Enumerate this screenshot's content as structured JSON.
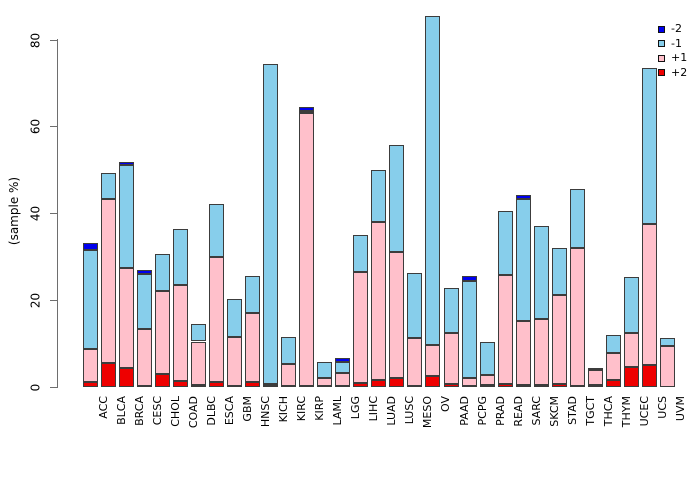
{
  "chart_data": {
    "type": "bar",
    "variant": "stacked-vertical",
    "title": "",
    "xlabel": "",
    "ylabel": "(sample %)",
    "yticks": [
      0,
      20,
      40,
      60,
      80
    ],
    "ylim": [
      0,
      87
    ],
    "grid": false,
    "legend_position": "top-right",
    "stack_order_bottom_to_top": [
      "+2",
      "+1",
      "-1",
      "-2"
    ],
    "categories": [
      "ACC",
      "BLCA",
      "BRCA",
      "CESC",
      "CHOL",
      "COAD",
      "DLBC",
      "ESCA",
      "GBM",
      "HNSC",
      "KICH",
      "KIRC",
      "KIRP",
      "LAML",
      "LGG",
      "LIHC",
      "LUAD",
      "LUSC",
      "MESO",
      "OV",
      "PAAD",
      "PCPG",
      "PRAD",
      "READ",
      "SARC",
      "SKCM",
      "STAD",
      "TGCT",
      "THCA",
      "THYM",
      "UCEC",
      "UCS",
      "UVM"
    ],
    "series": [
      {
        "name": "+2",
        "color": "#ee0000",
        "values": [
          1.2,
          5.6,
          4.4,
          0.2,
          3.0,
          1.4,
          0.4,
          1.2,
          0.3,
          1.2,
          0.3,
          0.3,
          0.3,
          0.2,
          0.2,
          1.0,
          1.6,
          2.0,
          0.2,
          2.5,
          0.8,
          0.2,
          0.5,
          0.8,
          0.5,
          0.5,
          0.7,
          0.2,
          0.4,
          1.6,
          4.7,
          5.1,
          0.1
        ]
      },
      {
        "name": "+1",
        "color": "#ffc0cb",
        "values": [
          7.5,
          37.8,
          23.0,
          13.2,
          19.2,
          22.1,
          10.1,
          28.7,
          11.3,
          15.9,
          0.4,
          5.0,
          63.0,
          1.8,
          3.0,
          25.6,
          36.4,
          29.2,
          11.2,
          7.3,
          11.6,
          1.8,
          2.3,
          25.0,
          14.8,
          15.1,
          20.5,
          31.8,
          3.6,
          6.2,
          7.7,
          32.4,
          9.4
        ]
      },
      {
        "name": "-1",
        "color": "#87ceeb",
        "values": [
          22.8,
          6.0,
          23.8,
          12.7,
          8.6,
          12.9,
          4.0,
          12.4,
          8.6,
          8.5,
          73.8,
          6.2,
          0.4,
          3.8,
          2.6,
          8.5,
          12.1,
          24.6,
          15.0,
          75.8,
          10.4,
          22.5,
          7.6,
          14.9,
          28.1,
          21.5,
          10.8,
          13.6,
          0.3,
          4.2,
          13.0,
          36.2,
          1.7
        ]
      },
      {
        "name": "-2",
        "color": "#0000ee",
        "values": [
          1.8,
          0,
          0.7,
          1.0,
          0,
          0,
          0,
          0,
          0,
          0,
          0,
          0,
          1.0,
          0,
          1.0,
          0,
          0,
          0,
          0,
          0,
          0,
          1.1,
          0,
          0,
          0.9,
          0,
          0,
          0,
          0,
          0,
          0,
          0,
          0
        ]
      }
    ],
    "totals": [
      33.3,
      49.4,
      51.9,
      27.1,
      30.8,
      36.4,
      14.5,
      42.3,
      20.2,
      25.6,
      74.5,
      11.5,
      64.7,
      5.8,
      6.8,
      35.1,
      50.1,
      55.8,
      26.4,
      85.6,
      22.8,
      25.6,
      10.4,
      40.7,
      44.3,
      37.1,
      32.0,
      45.6,
      4.3,
      12.0,
      25.4,
      73.7,
      11.2
    ],
    "legend": [
      {
        "label": "-2",
        "color": "#0000ee"
      },
      {
        "label": "-1",
        "color": "#87ceeb"
      },
      {
        "label": "+1",
        "color": "#ffc0cb"
      },
      {
        "label": "+2",
        "color": "#ee0000"
      }
    ]
  }
}
